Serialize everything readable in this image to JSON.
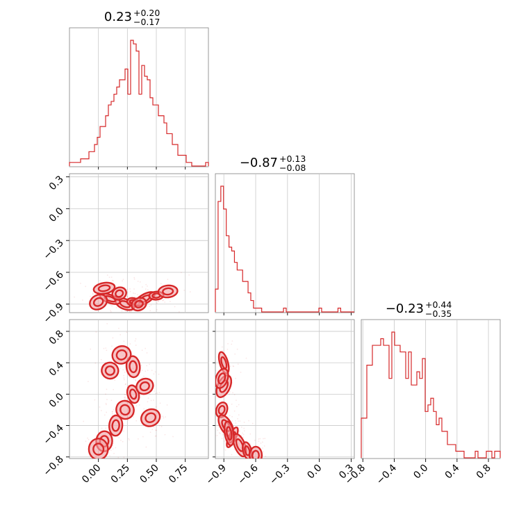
{
  "colors": {
    "accent": "#d62728",
    "contour_fill": "#f2a0a3",
    "grid": "#c8c8c8",
    "frame": "#808080"
  },
  "chart_data": {
    "type": "corner",
    "parameters": [
      {
        "title": {
          "median": "0.23",
          "plus": "+0.20",
          "minus": "−0.17"
        },
        "range": [
          -0.25,
          0.95
        ],
        "ticks": [
          0.0,
          0.25,
          0.5,
          0.75
        ],
        "tick_labels": [
          "0.00",
          "0.25",
          "0.50",
          "0.75"
        ],
        "histogram_heights": [
          1,
          1,
          1,
          1,
          2,
          2,
          2,
          4,
          4,
          6,
          8,
          11,
          11,
          14,
          17,
          18,
          20,
          22,
          24,
          24,
          27,
          20,
          35,
          34,
          32,
          20,
          28,
          25,
          24,
          19,
          17,
          17,
          14,
          14,
          12,
          9,
          9,
          6,
          6,
          3,
          3,
          3,
          1,
          1,
          0,
          0,
          0,
          0,
          0,
          1
        ]
      },
      {
        "title": {
          "median": "−0.87",
          "plus": "+0.13",
          "minus": "−0.08"
        },
        "range": [
          -0.98,
          0.33
        ],
        "ticks": [
          -0.9,
          -0.6,
          -0.3,
          0.0,
          0.3
        ],
        "tick_labels": [
          "−0.9",
          "−0.6",
          "−0.3",
          "0.0",
          "0.3"
        ],
        "histogram_heights": [
          6,
          29,
          33,
          27,
          20,
          17,
          16,
          13,
          11,
          11,
          8,
          8,
          5,
          3,
          1,
          1,
          1,
          0,
          0,
          0,
          0,
          0,
          0,
          0,
          0,
          1,
          0,
          0,
          0,
          0,
          0,
          0,
          0,
          0,
          0,
          0,
          0,
          0,
          1,
          0,
          0,
          0,
          0,
          0,
          0,
          1,
          0,
          0,
          0,
          0,
          0
        ]
      },
      {
        "title": {
          "median": "−0.23",
          "plus": "+0.44",
          "minus": "−0.35"
        },
        "range": [
          -0.82,
          0.95
        ],
        "ticks": [
          -0.8,
          -0.4,
          0.0,
          0.4,
          0.8
        ],
        "tick_labels": [
          "−0.8",
          "−0.4",
          "0.0",
          "0.4",
          "0.8"
        ],
        "histogram_heights": [
          6,
          6,
          14,
          14,
          17,
          17,
          17,
          18,
          17,
          17,
          12,
          19,
          17,
          17,
          16,
          16,
          12,
          16,
          11,
          11,
          13,
          12,
          15,
          7,
          8,
          9,
          7,
          5,
          6,
          4,
          4,
          2,
          2,
          2,
          1,
          1,
          1,
          0,
          0,
          0,
          0,
          1,
          0,
          0,
          0,
          1,
          1,
          0,
          1,
          1
        ]
      }
    ],
    "density_samples": {
      "p0_p1_core": [
        [
          0.23,
          -0.9
        ],
        [
          0.3,
          -0.88
        ],
        [
          0.4,
          -0.85
        ],
        [
          0.5,
          -0.82
        ],
        [
          0.6,
          -0.78
        ],
        [
          0.1,
          -0.85
        ],
        [
          0.05,
          -0.75
        ],
        [
          0.18,
          -0.8
        ],
        [
          0.35,
          -0.9
        ],
        [
          0.0,
          -0.88
        ]
      ],
      "p0_p2_core": [
        [
          0.23,
          -0.2
        ],
        [
          0.3,
          0.0
        ],
        [
          0.15,
          -0.4
        ],
        [
          0.05,
          -0.6
        ],
        [
          0.4,
          0.1
        ],
        [
          0.3,
          0.35
        ],
        [
          0.2,
          0.5
        ],
        [
          0.1,
          0.3
        ],
        [
          0.45,
          -0.3
        ],
        [
          0.0,
          -0.7
        ]
      ],
      "p1_p2_core": [
        [
          -0.92,
          -0.2
        ],
        [
          -0.9,
          0.1
        ],
        [
          -0.9,
          0.4
        ],
        [
          -0.88,
          -0.4
        ],
        [
          -0.82,
          -0.55
        ],
        [
          -0.75,
          -0.65
        ],
        [
          -0.68,
          -0.72
        ],
        [
          -0.92,
          0.2
        ],
        [
          -0.6,
          -0.78
        ],
        [
          -0.85,
          -0.5
        ]
      ]
    }
  }
}
